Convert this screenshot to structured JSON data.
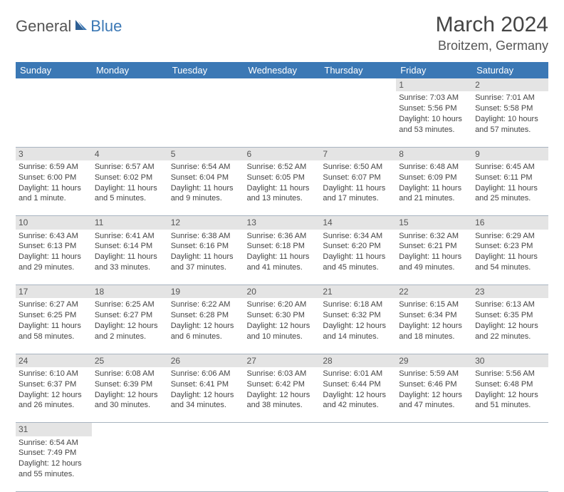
{
  "logo": {
    "part1": "General",
    "part2": "Blue"
  },
  "title": "March 2024",
  "location": "Broitzem, Germany",
  "colors": {
    "header_bg": "#3b78b5",
    "header_fg": "#ffffff",
    "daynum_bg": "#e4e4e4",
    "border": "#a8b4c0",
    "text": "#444444"
  },
  "day_names": [
    "Sunday",
    "Monday",
    "Tuesday",
    "Wednesday",
    "Thursday",
    "Friday",
    "Saturday"
  ],
  "weeks": [
    [
      null,
      null,
      null,
      null,
      null,
      {
        "n": "1",
        "sr": "Sunrise: 7:03 AM",
        "ss": "Sunset: 5:56 PM",
        "d1": "Daylight: 10 hours",
        "d2": "and 53 minutes."
      },
      {
        "n": "2",
        "sr": "Sunrise: 7:01 AM",
        "ss": "Sunset: 5:58 PM",
        "d1": "Daylight: 10 hours",
        "d2": "and 57 minutes."
      }
    ],
    [
      {
        "n": "3",
        "sr": "Sunrise: 6:59 AM",
        "ss": "Sunset: 6:00 PM",
        "d1": "Daylight: 11 hours",
        "d2": "and 1 minute."
      },
      {
        "n": "4",
        "sr": "Sunrise: 6:57 AM",
        "ss": "Sunset: 6:02 PM",
        "d1": "Daylight: 11 hours",
        "d2": "and 5 minutes."
      },
      {
        "n": "5",
        "sr": "Sunrise: 6:54 AM",
        "ss": "Sunset: 6:04 PM",
        "d1": "Daylight: 11 hours",
        "d2": "and 9 minutes."
      },
      {
        "n": "6",
        "sr": "Sunrise: 6:52 AM",
        "ss": "Sunset: 6:05 PM",
        "d1": "Daylight: 11 hours",
        "d2": "and 13 minutes."
      },
      {
        "n": "7",
        "sr": "Sunrise: 6:50 AM",
        "ss": "Sunset: 6:07 PM",
        "d1": "Daylight: 11 hours",
        "d2": "and 17 minutes."
      },
      {
        "n": "8",
        "sr": "Sunrise: 6:48 AM",
        "ss": "Sunset: 6:09 PM",
        "d1": "Daylight: 11 hours",
        "d2": "and 21 minutes."
      },
      {
        "n": "9",
        "sr": "Sunrise: 6:45 AM",
        "ss": "Sunset: 6:11 PM",
        "d1": "Daylight: 11 hours",
        "d2": "and 25 minutes."
      }
    ],
    [
      {
        "n": "10",
        "sr": "Sunrise: 6:43 AM",
        "ss": "Sunset: 6:13 PM",
        "d1": "Daylight: 11 hours",
        "d2": "and 29 minutes."
      },
      {
        "n": "11",
        "sr": "Sunrise: 6:41 AM",
        "ss": "Sunset: 6:14 PM",
        "d1": "Daylight: 11 hours",
        "d2": "and 33 minutes."
      },
      {
        "n": "12",
        "sr": "Sunrise: 6:38 AM",
        "ss": "Sunset: 6:16 PM",
        "d1": "Daylight: 11 hours",
        "d2": "and 37 minutes."
      },
      {
        "n": "13",
        "sr": "Sunrise: 6:36 AM",
        "ss": "Sunset: 6:18 PM",
        "d1": "Daylight: 11 hours",
        "d2": "and 41 minutes."
      },
      {
        "n": "14",
        "sr": "Sunrise: 6:34 AM",
        "ss": "Sunset: 6:20 PM",
        "d1": "Daylight: 11 hours",
        "d2": "and 45 minutes."
      },
      {
        "n": "15",
        "sr": "Sunrise: 6:32 AM",
        "ss": "Sunset: 6:21 PM",
        "d1": "Daylight: 11 hours",
        "d2": "and 49 minutes."
      },
      {
        "n": "16",
        "sr": "Sunrise: 6:29 AM",
        "ss": "Sunset: 6:23 PM",
        "d1": "Daylight: 11 hours",
        "d2": "and 54 minutes."
      }
    ],
    [
      {
        "n": "17",
        "sr": "Sunrise: 6:27 AM",
        "ss": "Sunset: 6:25 PM",
        "d1": "Daylight: 11 hours",
        "d2": "and 58 minutes."
      },
      {
        "n": "18",
        "sr": "Sunrise: 6:25 AM",
        "ss": "Sunset: 6:27 PM",
        "d1": "Daylight: 12 hours",
        "d2": "and 2 minutes."
      },
      {
        "n": "19",
        "sr": "Sunrise: 6:22 AM",
        "ss": "Sunset: 6:28 PM",
        "d1": "Daylight: 12 hours",
        "d2": "and 6 minutes."
      },
      {
        "n": "20",
        "sr": "Sunrise: 6:20 AM",
        "ss": "Sunset: 6:30 PM",
        "d1": "Daylight: 12 hours",
        "d2": "and 10 minutes."
      },
      {
        "n": "21",
        "sr": "Sunrise: 6:18 AM",
        "ss": "Sunset: 6:32 PM",
        "d1": "Daylight: 12 hours",
        "d2": "and 14 minutes."
      },
      {
        "n": "22",
        "sr": "Sunrise: 6:15 AM",
        "ss": "Sunset: 6:34 PM",
        "d1": "Daylight: 12 hours",
        "d2": "and 18 minutes."
      },
      {
        "n": "23",
        "sr": "Sunrise: 6:13 AM",
        "ss": "Sunset: 6:35 PM",
        "d1": "Daylight: 12 hours",
        "d2": "and 22 minutes."
      }
    ],
    [
      {
        "n": "24",
        "sr": "Sunrise: 6:10 AM",
        "ss": "Sunset: 6:37 PM",
        "d1": "Daylight: 12 hours",
        "d2": "and 26 minutes."
      },
      {
        "n": "25",
        "sr": "Sunrise: 6:08 AM",
        "ss": "Sunset: 6:39 PM",
        "d1": "Daylight: 12 hours",
        "d2": "and 30 minutes."
      },
      {
        "n": "26",
        "sr": "Sunrise: 6:06 AM",
        "ss": "Sunset: 6:41 PM",
        "d1": "Daylight: 12 hours",
        "d2": "and 34 minutes."
      },
      {
        "n": "27",
        "sr": "Sunrise: 6:03 AM",
        "ss": "Sunset: 6:42 PM",
        "d1": "Daylight: 12 hours",
        "d2": "and 38 minutes."
      },
      {
        "n": "28",
        "sr": "Sunrise: 6:01 AM",
        "ss": "Sunset: 6:44 PM",
        "d1": "Daylight: 12 hours",
        "d2": "and 42 minutes."
      },
      {
        "n": "29",
        "sr": "Sunrise: 5:59 AM",
        "ss": "Sunset: 6:46 PM",
        "d1": "Daylight: 12 hours",
        "d2": "and 47 minutes."
      },
      {
        "n": "30",
        "sr": "Sunrise: 5:56 AM",
        "ss": "Sunset: 6:48 PM",
        "d1": "Daylight: 12 hours",
        "d2": "and 51 minutes."
      }
    ],
    [
      {
        "n": "31",
        "sr": "Sunrise: 6:54 AM",
        "ss": "Sunset: 7:49 PM",
        "d1": "Daylight: 12 hours",
        "d2": "and 55 minutes."
      },
      null,
      null,
      null,
      null,
      null,
      null
    ]
  ]
}
